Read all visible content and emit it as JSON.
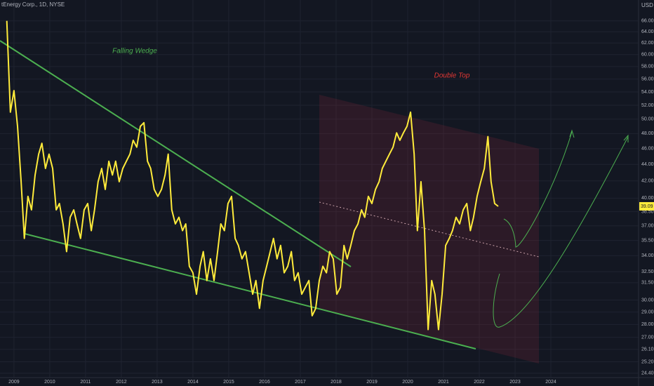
{
  "chart_data": {
    "type": "line",
    "title": "tEnergy Corp., 1D, NYSE",
    "unit": "USD",
    "annotations": [
      "Falling Wedge",
      "Double Top"
    ],
    "color": "#ffeb3b",
    "log_scale": true,
    "grid": true,
    "x": [
      2008.8,
      2008.9,
      2009.0,
      2009.1,
      2009.2,
      2009.29,
      2009.39,
      2009.49,
      2009.59,
      2009.69,
      2009.78,
      2009.88,
      2009.98,
      2010.08,
      2010.18,
      2010.27,
      2010.37,
      2010.47,
      2010.57,
      2010.67,
      2010.76,
      2010.86,
      2010.96,
      2011.06,
      2011.16,
      2011.25,
      2011.35,
      2011.45,
      2011.55,
      2011.65,
      2011.75,
      2011.84,
      2011.94,
      2012.04,
      2012.14,
      2012.24,
      2012.33,
      2012.43,
      2012.53,
      2012.63,
      2012.73,
      2012.82,
      2012.92,
      2013.02,
      2013.12,
      2013.22,
      2013.31,
      2013.41,
      2013.51,
      2013.61,
      2013.71,
      2013.8,
      2013.9,
      2014.0,
      2014.1,
      2014.2,
      2014.29,
      2014.39,
      2014.49,
      2014.59,
      2014.69,
      2014.78,
      2014.88,
      2014.98,
      2015.08,
      2015.18,
      2015.27,
      2015.37,
      2015.47,
      2015.57,
      2015.67,
      2015.76,
      2015.86,
      2015.96,
      2016.06,
      2016.16,
      2016.25,
      2016.35,
      2016.45,
      2016.55,
      2016.65,
      2016.75,
      2016.84,
      2016.94,
      2017.04,
      2017.14,
      2017.24,
      2017.33,
      2017.43,
      2017.53,
      2017.63,
      2017.73,
      2017.82,
      2017.92,
      2018.02,
      2018.12,
      2018.22,
      2018.31,
      2018.41,
      2018.51,
      2018.61,
      2018.71,
      2018.8,
      2018.9,
      2019.0,
      2019.1,
      2019.2,
      2019.29,
      2019.39,
      2019.49,
      2019.59,
      2019.69,
      2019.78,
      2019.88,
      2019.98,
      2020.08,
      2020.18,
      2020.27,
      2020.37,
      2020.47,
      2020.57,
      2020.67,
      2020.76,
      2020.86,
      2020.96,
      2021.06,
      2021.16,
      2021.25,
      2021.35,
      2021.45,
      2021.55,
      2021.65,
      2021.75,
      2021.84,
      2021.94,
      2022.04,
      2022.14,
      2022.24,
      2022.33,
      2022.43,
      2022.53
    ],
    "values": [
      66.0,
      51.0,
      54.2,
      49.0,
      41.9,
      35.7,
      40.2,
      38.7,
      42.7,
      45.3,
      46.7,
      43.5,
      45.3,
      43.5,
      38.7,
      39.4,
      37.2,
      34.4,
      37.9,
      38.7,
      37.2,
      35.7,
      38.7,
      39.4,
      36.5,
      38.7,
      41.9,
      43.5,
      41.0,
      44.4,
      42.7,
      44.4,
      41.9,
      43.5,
      44.4,
      45.3,
      47.1,
      46.2,
      49.0,
      49.5,
      44.4,
      43.5,
      41.0,
      40.2,
      41.0,
      42.7,
      45.3,
      38.7,
      37.2,
      37.9,
      36.5,
      37.2,
      33.0,
      32.4,
      30.5,
      33.0,
      34.4,
      31.7,
      33.7,
      31.7,
      34.4,
      37.2,
      36.5,
      39.4,
      40.2,
      35.7,
      35.0,
      33.7,
      34.4,
      32.4,
      30.5,
      31.7,
      29.3,
      31.7,
      33.0,
      34.4,
      35.7,
      33.7,
      35.0,
      32.4,
      33.0,
      34.4,
      31.7,
      32.4,
      30.5,
      31.1,
      31.7,
      28.7,
      29.3,
      31.7,
      33.0,
      32.4,
      34.4,
      33.7,
      30.5,
      31.1,
      35.0,
      33.7,
      35.0,
      36.5,
      37.2,
      38.7,
      37.9,
      40.2,
      39.4,
      41.0,
      41.9,
      43.5,
      44.4,
      45.3,
      46.2,
      48.1,
      47.1,
      48.1,
      49.0,
      51.0,
      45.3,
      36.5,
      41.9,
      36.5,
      27.6,
      31.7,
      30.5,
      27.6,
      30.5,
      35.0,
      35.7,
      36.5,
      37.9,
      37.2,
      38.7,
      39.4,
      36.5,
      37.9,
      40.2,
      41.9,
      43.5,
      47.6,
      41.9,
      39.4,
      39.09
    ],
    "xlim": [
      2008.61,
      2026.45
    ],
    "xticks": [
      2009,
      2010,
      2011,
      2012,
      2013,
      2014,
      2015,
      2016,
      2017,
      2018,
      2019,
      2020,
      2021,
      2022,
      2023,
      2024
    ],
    "ylim": [
      24.1,
      70.0
    ],
    "yticks": [
      {
        "value": 66,
        "label": "66.00"
      },
      {
        "value": 64,
        "label": "64.00"
      },
      {
        "value": 62,
        "label": "62.00"
      },
      {
        "value": 60,
        "label": "60.00"
      },
      {
        "value": 58,
        "label": "58.00"
      },
      {
        "value": 56,
        "label": "56.00"
      },
      {
        "value": 54,
        "label": "54.00"
      },
      {
        "value": 52,
        "label": "52.00"
      },
      {
        "value": 50,
        "label": "50.00"
      },
      {
        "value": 48,
        "label": "48.00"
      },
      {
        "value": 46,
        "label": "46.00"
      },
      {
        "value": 44,
        "label": "44.00"
      },
      {
        "value": 42,
        "label": "42.00"
      },
      {
        "value": 40,
        "label": "40.00"
      },
      {
        "value": 38.5,
        "label": "38.50"
      },
      {
        "value": 37,
        "label": "37.00"
      },
      {
        "value": 35.5,
        "label": "35.50"
      },
      {
        "value": 34,
        "label": "34.00"
      },
      {
        "value": 32.5,
        "label": "32.50"
      },
      {
        "value": 31.5,
        "label": "31.50"
      },
      {
        "value": 30,
        "label": "30.00"
      },
      {
        "value": 29,
        "label": "29.00"
      },
      {
        "value": 28,
        "label": "28.00"
      },
      {
        "value": 27,
        "label": "27.00"
      },
      {
        "value": 26.1,
        "label": "26.10"
      },
      {
        "value": 25.2,
        "label": "25.20"
      },
      {
        "value": 24.4,
        "label": "24.40"
      }
    ]
  }
}
